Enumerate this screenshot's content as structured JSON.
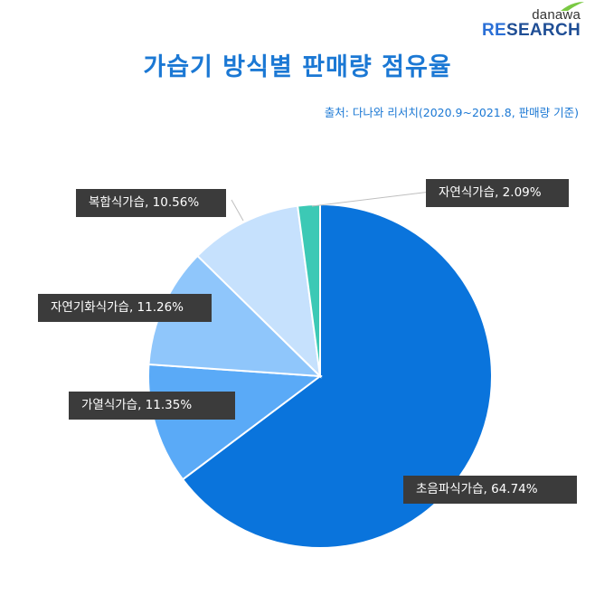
{
  "logo": {
    "top": "danawa",
    "bottom_accent": "RE",
    "bottom_rest": "SEARCH"
  },
  "colors": {
    "title": "#1b78d4",
    "label_bg": "#3b3b3b",
    "slices": [
      "#0a74dc",
      "#5aaaf7",
      "#8fc6fb",
      "#c6e1fd",
      "#3cc9b5"
    ]
  },
  "chart_data": {
    "type": "pie",
    "title": "가습기 방식별 판매량 점유율",
    "source": "출처: 다나와 리서치(2020.9~2021.8, 판매량 기준)",
    "slices": [
      {
        "name": "초음파식가습",
        "value": 64.74,
        "label": "초음파식가습, 64.74%"
      },
      {
        "name": "가열식가습",
        "value": 11.35,
        "label": "가열식가습, 11.35%"
      },
      {
        "name": "자연기화식가습",
        "value": 11.26,
        "label": "자연기화식가습, 11.26%"
      },
      {
        "name": "복합식가습",
        "value": 10.56,
        "label": "복합식가습, 10.56%"
      },
      {
        "name": "자연식가습",
        "value": 2.09,
        "label": "자연식가습, 2.09%"
      }
    ]
  }
}
